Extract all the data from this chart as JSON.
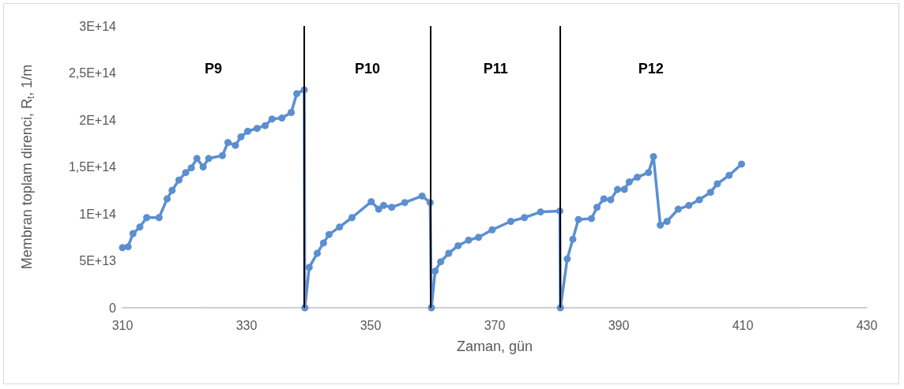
{
  "chart_data": {
    "type": "line",
    "xlabel": "Zaman, gün",
    "ylabel": "Membran toplam direnci, R$_{t}$, 1/m",
    "series": [
      {
        "color": "#5b8fd0",
        "x": [
          310,
          310.9,
          311.7,
          312.8,
          313.9,
          315.9,
          317.2,
          318.0,
          319.1,
          320.2,
          321.1,
          322.0,
          323.0,
          323.9,
          326.1,
          327.0,
          328.2,
          329.1,
          330.2,
          331.7,
          333.0,
          334.1,
          335.7,
          337.2,
          338.1,
          339.3,
          339.4,
          340.1,
          341.4,
          342.4,
          343.3,
          345,
          347,
          350.1,
          351.3,
          352.1,
          353.4,
          355.5,
          358.3,
          359.6,
          359.8,
          360.4,
          361.3,
          362.6,
          364.1,
          365.8,
          367.4,
          369.6,
          372.6,
          374.8,
          377.4,
          380.5,
          380.6,
          381.7,
          382.6,
          383.5,
          385.6,
          386.5,
          387.6,
          388.7,
          389.8,
          390.9,
          391.7,
          393.0,
          394.8,
          395.6,
          396.7,
          397.8,
          399.6,
          401.3,
          403.0,
          404.8,
          405.9,
          407.8,
          409.8
        ],
        "values": [
          64000000000000.0,
          65000000000000.0,
          79000000000000.0,
          86000000000000.0,
          96000000000000.0,
          96000000000000.0,
          116000000000000.0,
          125000000000000.0,
          136000000000000.0,
          144000000000000.0,
          149000000000000.0,
          159000000000000.0,
          150000000000000.0,
          159000000000000.0,
          162000000000000.0,
          176000000000000.0,
          173000000000000.0,
          182000000000000.0,
          188000000000000.0,
          191000000000000.0,
          194000000000000.0,
          201000000000000.0,
          202000000000000.0,
          208000000000000.0,
          228000000000000.0,
          232000000000000.0,
          0,
          43000000000000.0,
          58000000000000.0,
          69000000000000.0,
          78000000000000.0,
          86000000000000.0,
          96000000000000.0,
          113000000000000.0,
          105000000000000.0,
          109000000000000.0,
          107000000000000.0,
          112000000000000.0,
          119000000000000.0,
          112000000000000.0,
          0,
          39000000000000.0,
          49000000000000.0,
          58000000000000.0,
          66000000000000.0,
          72000000000000.0,
          75000000000000.0,
          83000000000000.0,
          92000000000000.0,
          96000000000000.0,
          102000000000000.0,
          103000000000000.0,
          0,
          52000000000000.0,
          73000000000000.0,
          94000000000000.0,
          95000000000000.0,
          107000000000000.0,
          116000000000000.0,
          115000000000000.0,
          126000000000000.0,
          126000000000000.0,
          134000000000000.0,
          139000000000000.0,
          144000000000000.0,
          161000000000000.0,
          88000000000000.0,
          92000000000000.0,
          105000000000000.0,
          109000000000000.0,
          115000000000000.0,
          123000000000000.0,
          132000000000000.0,
          141000000000000.0,
          153000000000000.0
        ]
      }
    ],
    "xlim": [
      310,
      430
    ],
    "xticks": [
      310,
      330,
      350,
      370,
      390,
      410,
      430
    ],
    "ylim": [
      0,
      300000000000000.0
    ],
    "yticks": [
      0,
      {
        "value": 50000000000000.0,
        "label": "5E+13"
      },
      {
        "value": 100000000000000.0,
        "label": "1E+14"
      },
      {
        "value": 150000000000000.0,
        "label": "1,5E+14"
      },
      {
        "value": 200000000000000.0,
        "label": "2E+14"
      },
      {
        "value": 250000000000000.0,
        "label": "2,5E+14"
      },
      {
        "value": 300000000000000.0,
        "label": "3E+14"
      }
    ],
    "ref_lines": [
      {
        "axis": "x",
        "value": 339.3,
        "color": "#000000"
      },
      {
        "axis": "x",
        "value": 359.7,
        "color": "#000000"
      },
      {
        "axis": "x",
        "value": 380.6,
        "color": "#000000"
      }
    ],
    "annotations": [
      "P9",
      "P10",
      "P11",
      "P12"
    ],
    "marker": "circle",
    "line_style": "solid",
    "grid": false
  }
}
